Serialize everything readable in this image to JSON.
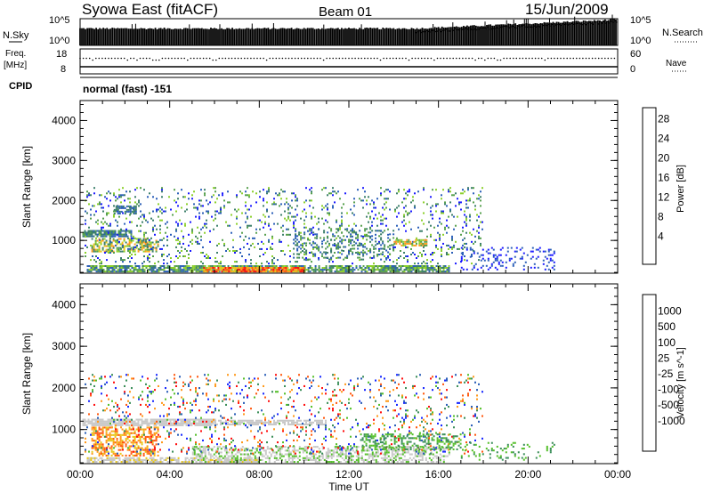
{
  "header": {
    "station": "Syowa East (fitACF)",
    "beam": "Beam 01",
    "date": "15/Jun/2009"
  },
  "noise_panel": {
    "left_label": "N.Sky",
    "right_label": "N.Search",
    "ytick_top": "10^5",
    "ytick_bottom": "10^0",
    "right_ytick_top": "10^5",
    "right_ytick_bottom": "10^0"
  },
  "freq_panel": {
    "left_label_1": "Freq.",
    "left_label_2": "[MHz]",
    "right_label": "Nave",
    "left_ticks": [
      "18",
      "8"
    ],
    "right_ticks": [
      "60",
      "0"
    ]
  },
  "cpid": {
    "label": "CPID",
    "value": "normal (fast) -151"
  },
  "colors": {
    "power": [
      "#1a1aff",
      "#2b5fb8",
      "#3c7f6a",
      "#56a04d",
      "#8cd02c",
      "#e8c81c",
      "#ff9a1c",
      "#ff5a10",
      "#ff1010"
    ],
    "velocity": [
      "#ff1010",
      "#ff5a10",
      "#ff9a1c",
      "#e8c81c",
      "#c8c8c8",
      "#c8c8c8",
      "#56c02c",
      "#3c8f5a",
      "#2b5fb8",
      "#1a2aff"
    ]
  },
  "chart_data": [
    {
      "type": "heatmap",
      "name": "power",
      "xlabel": "",
      "ylabel": "Slant Range [km]",
      "colorbar_label": "Power [dB]",
      "colorbar_ticks": [
        "28",
        "24",
        "20",
        "16",
        "12",
        "8",
        "4"
      ],
      "xlim": [
        0,
        24
      ],
      "ylim": [
        180,
        4500
      ],
      "yticks": [
        "1000",
        "2000",
        "3000",
        "4000"
      ],
      "xticks": [
        "00:00",
        "04:00",
        "08:00",
        "12:00",
        "16:00",
        "20:00",
        "00:00"
      ],
      "regions": [
        {
          "t0": 0.1,
          "t1": 2.3,
          "r0": 1080,
          "r1": 1220,
          "density": 0.85,
          "levels": [
            1,
            2,
            3
          ]
        },
        {
          "t0": 0.5,
          "t1": 3.5,
          "r0": 700,
          "r1": 1050,
          "density": 0.6,
          "levels": [
            2,
            3,
            4,
            5,
            6
          ]
        },
        {
          "t0": 0.3,
          "t1": 16.5,
          "r0": 200,
          "r1": 380,
          "density": 0.8,
          "levels": [
            1,
            2,
            3,
            4
          ]
        },
        {
          "t0": 5.5,
          "t1": 10.0,
          "r0": 200,
          "r1": 320,
          "density": 0.9,
          "levels": [
            5,
            6,
            7,
            8
          ]
        },
        {
          "t0": 0.2,
          "t1": 18.0,
          "r0": 400,
          "r1": 2300,
          "density": 0.12,
          "levels": [
            0,
            1,
            2,
            3,
            4
          ]
        },
        {
          "t0": 9.5,
          "t1": 14.0,
          "r0": 500,
          "r1": 1300,
          "density": 0.25,
          "levels": [
            1,
            2,
            3
          ]
        },
        {
          "t0": 14.0,
          "t1": 15.5,
          "r0": 850,
          "r1": 1000,
          "density": 0.7,
          "levels": [
            3,
            4,
            6
          ]
        },
        {
          "t0": 17.0,
          "t1": 21.2,
          "r0": 250,
          "r1": 800,
          "density": 0.15,
          "levels": [
            0,
            1
          ]
        },
        {
          "t0": 1.5,
          "t1": 2.5,
          "r0": 1650,
          "r1": 1850,
          "density": 0.6,
          "levels": [
            1,
            2
          ]
        }
      ]
    },
    {
      "type": "heatmap",
      "name": "velocity",
      "xlabel": "Time UT",
      "ylabel": "Slant Range [km]",
      "colorbar_label": "Velocity [m s^-1]",
      "colorbar_ticks": [
        "1000",
        "500",
        "100",
        "25",
        "-25",
        "-100",
        "-500",
        "-1000"
      ],
      "xlim": [
        0,
        24
      ],
      "ylim": [
        180,
        4500
      ],
      "yticks": [
        "1000",
        "2000",
        "3000",
        "4000"
      ],
      "xticks": [
        "00:00",
        "04:00",
        "08:00",
        "12:00",
        "16:00",
        "20:00",
        "00:00"
      ],
      "regions": [
        {
          "t0": 0.1,
          "t1": 6.0,
          "r0": 1080,
          "r1": 1220,
          "density": 0.85,
          "levels": [
            4,
            5
          ]
        },
        {
          "t0": 6.0,
          "t1": 11.0,
          "r0": 1100,
          "r1": 1200,
          "density": 0.7,
          "levels": [
            4,
            5
          ]
        },
        {
          "t0": 0.5,
          "t1": 3.5,
          "r0": 350,
          "r1": 1050,
          "density": 0.55,
          "levels": [
            1,
            2,
            3
          ]
        },
        {
          "t0": 0.3,
          "t1": 8.0,
          "r0": 200,
          "r1": 320,
          "density": 0.7,
          "levels": [
            3,
            4,
            5
          ]
        },
        {
          "t0": 5.0,
          "t1": 16.5,
          "r0": 200,
          "r1": 600,
          "density": 0.5,
          "levels": [
            4,
            5,
            6
          ]
        },
        {
          "t0": 0.2,
          "t1": 18.0,
          "r0": 400,
          "r1": 2300,
          "density": 0.1,
          "levels": [
            0,
            1,
            2,
            6,
            7,
            8,
            9
          ]
        },
        {
          "t0": 12.5,
          "t1": 17.0,
          "r0": 500,
          "r1": 900,
          "density": 0.35,
          "levels": [
            6,
            7
          ]
        },
        {
          "t0": 17.0,
          "t1": 21.2,
          "r0": 250,
          "r1": 700,
          "density": 0.15,
          "levels": [
            6,
            7
          ]
        }
      ]
    }
  ]
}
